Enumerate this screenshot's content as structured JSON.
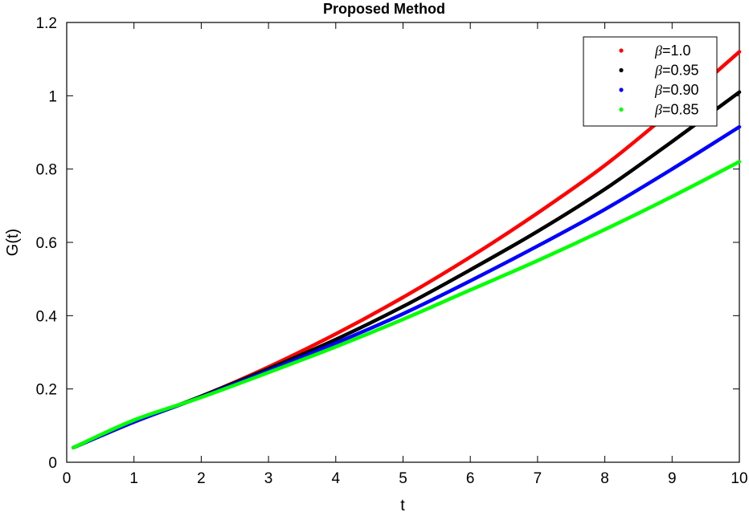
{
  "chart_data": {
    "type": "line",
    "title": "Proposed Method",
    "xlabel": "t",
    "ylabel": "G(t)",
    "xlim": [
      0,
      10
    ],
    "ylim": [
      0,
      1.2
    ],
    "xticks": [
      0,
      1,
      2,
      3,
      4,
      5,
      6,
      7,
      8,
      9,
      10
    ],
    "yticks": [
      0,
      0.2,
      0.4,
      0.6,
      0.8,
      1,
      1.2
    ],
    "xtick_labels": [
      "0",
      "1",
      "2",
      "3",
      "4",
      "5",
      "6",
      "7",
      "8",
      "9",
      "10"
    ],
    "ytick_labels": [
      "0",
      "0.2",
      "0.4",
      "0.6",
      "0.8",
      "1",
      "1.2"
    ],
    "grid": false,
    "legend_position": "top-right",
    "x": [
      0.1,
      1,
      2,
      3,
      4,
      5,
      6,
      7,
      8,
      9,
      10
    ],
    "series": [
      {
        "name": "β=1.0",
        "greek": "β",
        "rest": "=1.0",
        "color": "#ff0000",
        "values": [
          0.04,
          0.11,
          0.18,
          0.26,
          0.35,
          0.45,
          0.56,
          0.68,
          0.81,
          0.96,
          1.12
        ]
      },
      {
        "name": "β=0.95",
        "greek": "β",
        "rest": "=0.95",
        "color": "#000000",
        "values": [
          0.04,
          0.11,
          0.18,
          0.255,
          0.335,
          0.425,
          0.525,
          0.63,
          0.745,
          0.875,
          1.01
        ]
      },
      {
        "name": "β=0.90",
        "greek": "β",
        "rest": "=0.90",
        "color": "#0000ff",
        "values": [
          0.04,
          0.11,
          0.178,
          0.25,
          0.325,
          0.405,
          0.495,
          0.59,
          0.69,
          0.8,
          0.915
        ]
      },
      {
        "name": "β=0.85",
        "greek": "β",
        "rest": "=0.85",
        "color": "#00ff00",
        "values": [
          0.04,
          0.115,
          0.177,
          0.245,
          0.315,
          0.39,
          0.47,
          0.55,
          0.635,
          0.725,
          0.82
        ]
      }
    ]
  }
}
